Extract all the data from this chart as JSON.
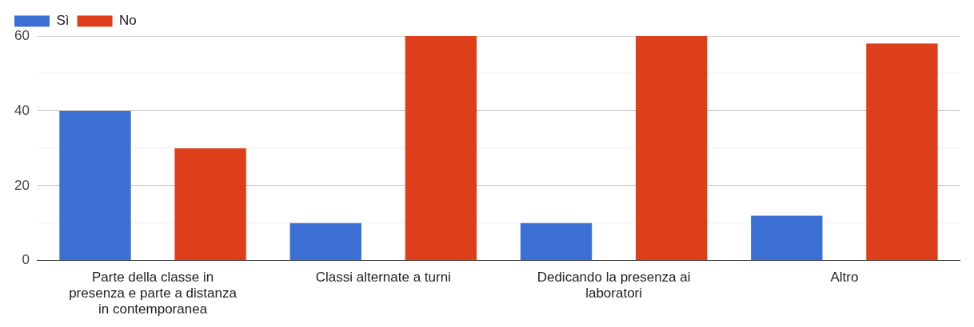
{
  "chart_data": {
    "type": "bar",
    "categories": [
      "Parte della classe in presenza e parte a distanza in contemporanea",
      "Classi alternate a turni",
      "Dedicando la presenza ai laboratori",
      "Altro"
    ],
    "series": [
      {
        "name": "Sì",
        "color": "#3b6fd4",
        "values": [
          40,
          10,
          10,
          12
        ]
      },
      {
        "name": "No",
        "color": "#dc3f1a",
        "values": [
          30,
          60,
          60,
          58
        ]
      }
    ],
    "ylim": [
      0,
      60
    ],
    "yticks": [
      0,
      {
        "value": 10,
        "label": null
      },
      20,
      {
        "value": 30,
        "label": null
      },
      40,
      {
        "value": 50,
        "label": null
      },
      60
    ],
    "grid": "y",
    "legend": "top left"
  }
}
